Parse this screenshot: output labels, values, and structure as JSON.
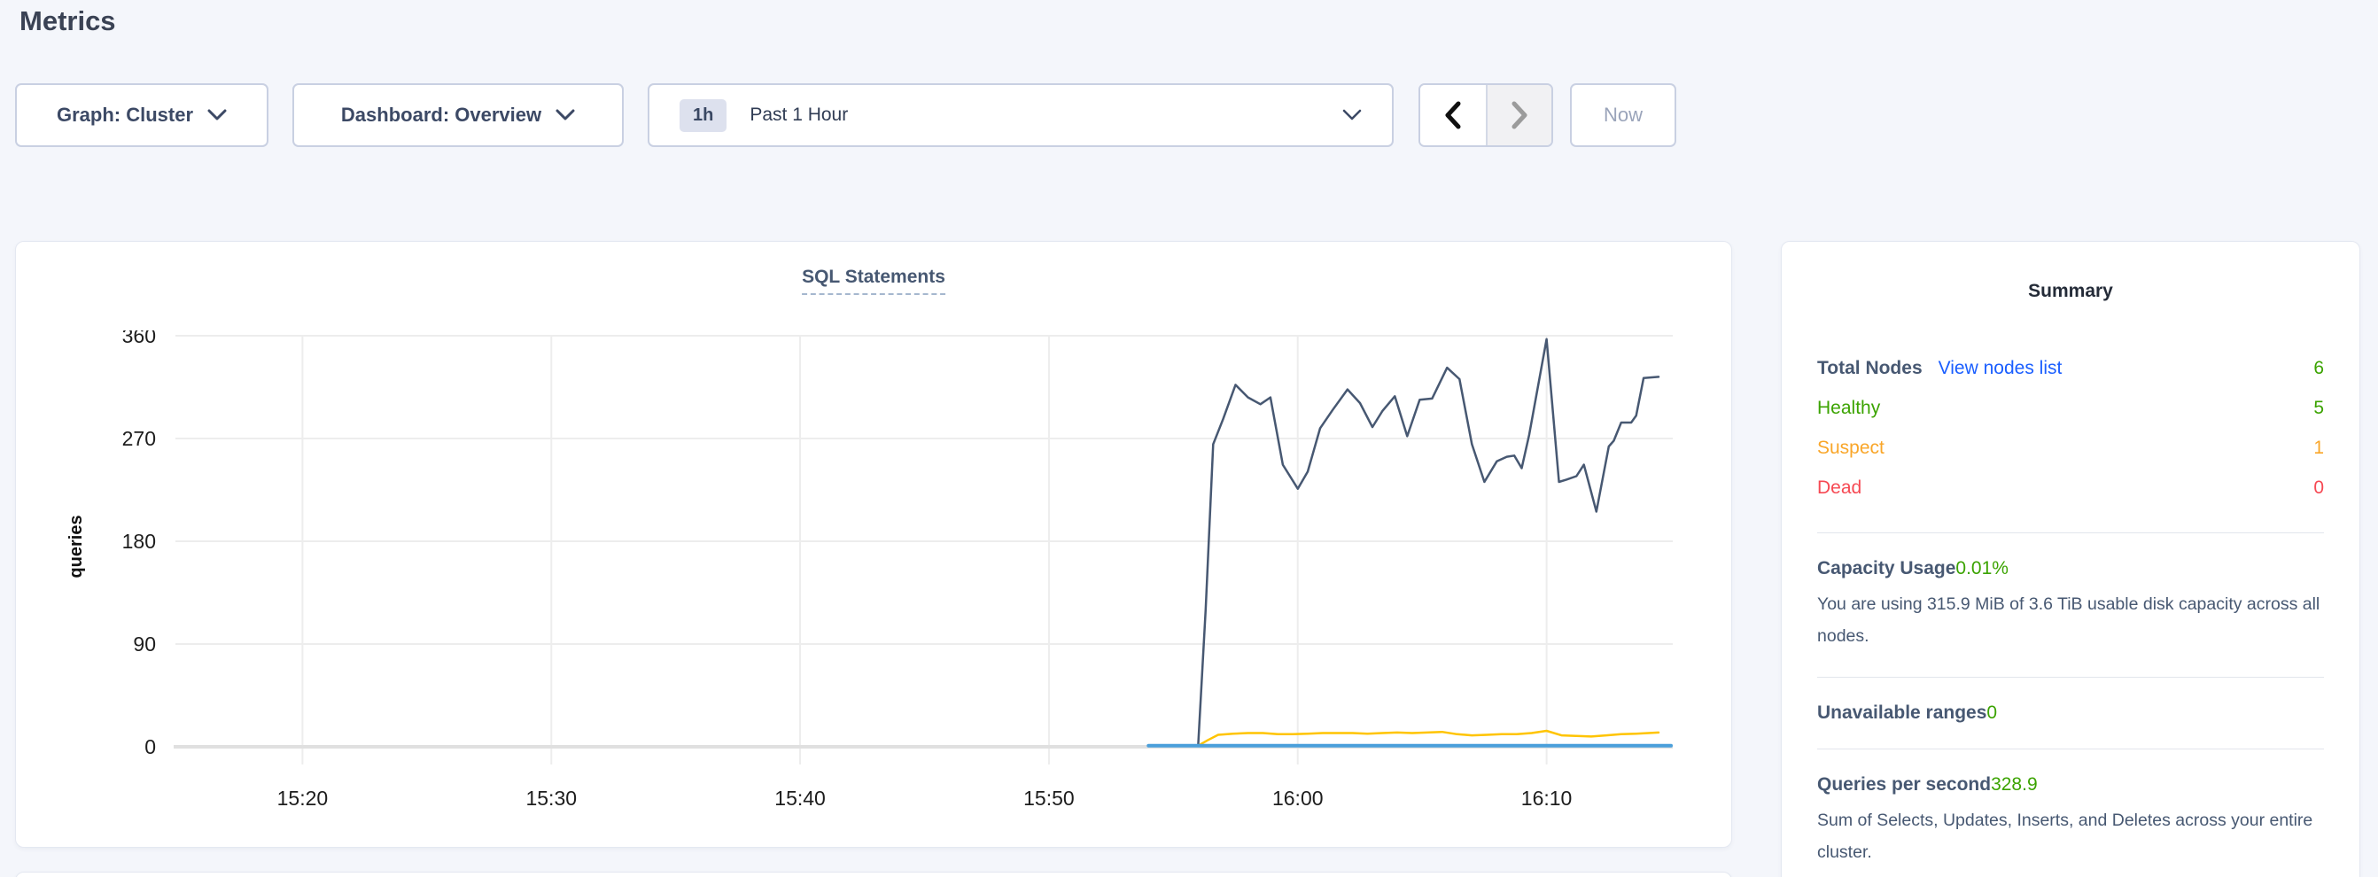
{
  "page": {
    "title": "Metrics"
  },
  "toolbar": {
    "graph_dropdown": "Graph: Cluster",
    "dashboard_dropdown": "Dashboard: Overview",
    "time_badge": "1h",
    "time_value": "Past 1 Hour",
    "now_label": "Now"
  },
  "chart_data": {
    "type": "line",
    "title": "SQL Statements",
    "ylabel": "queries",
    "grid": true,
    "legend": "none",
    "ylim": [
      0,
      360
    ],
    "yticks": [
      0,
      90,
      180,
      270,
      360
    ],
    "xlim_minutes_after_1500": [
      15,
      75
    ],
    "xticks": [
      {
        "label": "15:20",
        "m": 20
      },
      {
        "label": "15:30",
        "m": 30
      },
      {
        "label": "15:40",
        "m": 40
      },
      {
        "label": "15:50",
        "m": 50
      },
      {
        "label": "16:00",
        "m": 60
      },
      {
        "label": "16:10",
        "m": 70
      }
    ],
    "series": [
      {
        "name": "dark-blue-series",
        "color": "#475872",
        "width": 2.5,
        "points": [
          [
            56.0,
            2
          ],
          [
            56.3,
            120
          ],
          [
            56.6,
            265
          ],
          [
            57.0,
            287
          ],
          [
            57.5,
            317
          ],
          [
            58.0,
            306
          ],
          [
            58.5,
            300
          ],
          [
            58.9,
            306
          ],
          [
            59.4,
            247
          ],
          [
            60.0,
            226
          ],
          [
            60.4,
            241
          ],
          [
            60.9,
            279
          ],
          [
            61.4,
            295
          ],
          [
            62.0,
            313
          ],
          [
            62.5,
            301
          ],
          [
            63.0,
            280
          ],
          [
            63.4,
            294
          ],
          [
            63.9,
            307
          ],
          [
            64.4,
            272
          ],
          [
            64.9,
            304
          ],
          [
            65.4,
            305
          ],
          [
            66.0,
            332
          ],
          [
            66.5,
            322
          ],
          [
            67.0,
            265
          ],
          [
            67.5,
            232
          ],
          [
            68.0,
            250
          ],
          [
            68.4,
            254
          ],
          [
            68.7,
            255
          ],
          [
            69.0,
            244
          ],
          [
            69.3,
            273
          ],
          [
            70.0,
            357
          ],
          [
            70.5,
            232
          ],
          [
            70.8,
            234
          ],
          [
            71.2,
            237
          ],
          [
            71.5,
            247
          ],
          [
            72.0,
            206
          ],
          [
            72.5,
            263
          ],
          [
            72.7,
            268
          ],
          [
            73.0,
            284
          ],
          [
            73.4,
            284
          ],
          [
            73.6,
            290
          ],
          [
            73.9,
            323
          ],
          [
            74.5,
            324
          ]
        ]
      },
      {
        "name": "yellow-series",
        "color": "#ffc400",
        "width": 2.5,
        "points": [
          [
            56.0,
            1
          ],
          [
            56.4,
            6
          ],
          [
            56.8,
            10.5
          ],
          [
            57.4,
            11.5
          ],
          [
            58.0,
            12
          ],
          [
            58.6,
            12
          ],
          [
            59.2,
            11
          ],
          [
            59.8,
            11
          ],
          [
            60.4,
            11.5
          ],
          [
            61.0,
            12
          ],
          [
            61.6,
            12
          ],
          [
            62.2,
            12
          ],
          [
            62.8,
            11.5
          ],
          [
            63.4,
            12
          ],
          [
            64.0,
            12.5
          ],
          [
            64.6,
            12
          ],
          [
            65.2,
            12.5
          ],
          [
            65.8,
            13
          ],
          [
            66.4,
            11
          ],
          [
            67.0,
            10
          ],
          [
            67.6,
            10.5
          ],
          [
            68.2,
            11
          ],
          [
            68.8,
            11
          ],
          [
            69.4,
            12
          ],
          [
            70.0,
            14
          ],
          [
            70.6,
            10
          ],
          [
            71.2,
            9.5
          ],
          [
            71.8,
            9
          ],
          [
            72.4,
            10
          ],
          [
            73.0,
            11
          ],
          [
            73.6,
            11.5
          ],
          [
            74.5,
            12.5
          ]
        ]
      },
      {
        "name": "light-blue-series",
        "color": "#4a9fdb",
        "width": 4,
        "points": [
          [
            54.0,
            1
          ],
          [
            75.0,
            1
          ]
        ]
      }
    ]
  },
  "summary": {
    "title": "Summary",
    "nodes": {
      "label": "Total Nodes",
      "link": "View nodes list",
      "value": "6",
      "value_color": "#3ba300",
      "statuses": [
        {
          "label": "Healthy",
          "value": "5",
          "color": "#3ba300"
        },
        {
          "label": "Suspect",
          "value": "1",
          "color": "#f9a629"
        },
        {
          "label": "Dead",
          "value": "0",
          "color": "#f64953"
        }
      ]
    },
    "capacity": {
      "label": "Capacity Usage",
      "value": "0.01%",
      "value_color": "#3ba300",
      "description": "You are using 315.9 MiB of 3.6 TiB usable disk capacity across all nodes."
    },
    "unavailable": {
      "label": "Unavailable ranges",
      "value": "0",
      "value_color": "#3ba300"
    },
    "qps": {
      "label": "Queries per second",
      "value": "328.9",
      "value_color": "#3ba300",
      "description": "Sum of Selects, Updates, Inserts, and Deletes across your entire cluster."
    }
  }
}
